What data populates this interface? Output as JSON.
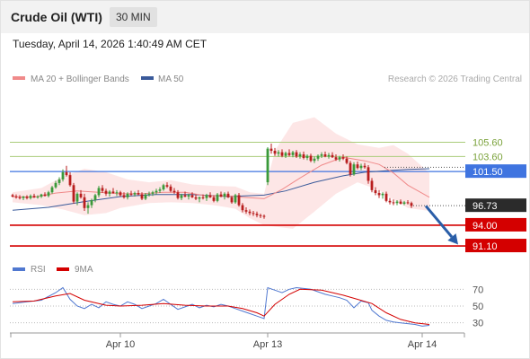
{
  "header": {
    "instrument": "Crude Oil (WTI)",
    "timeframe": "30 MIN"
  },
  "datetime": "Tuesday, April 14, 2026 1:40:49 AM CET",
  "legend": {
    "ma20_label": "MA 20 + Bollinger Bands",
    "ma50_label": "MA 50",
    "copyright": "Research © 2026 Trading Central",
    "rsi_label": "RSI",
    "rsi_ma_label": "9MA"
  },
  "colors": {
    "ma20": "#f08a8a",
    "ma50": "#3a5a9a",
    "bollinger_fill": "#fde2e2",
    "candle_up": "#3a9a3a",
    "candle_down": "#b81e1e",
    "support": "#d40000",
    "resistance": "#a9cc7a",
    "pivot": "#3f74e0",
    "last_price": "#2b2b2b",
    "forecast_arrow": "#2a5ea8",
    "rsi": "#5078d0",
    "rsi_ma": "#d40000"
  },
  "chart_data": [
    {
      "type": "line",
      "title": "",
      "price_range": [
        89.6,
        110.3
      ],
      "x_ticks": [
        {
          "label": "Apr 10",
          "bar": 30
        },
        {
          "label": "Apr 13",
          "bar": 71
        },
        {
          "label": "Apr 14",
          "bar": 114
        }
      ],
      "levels": [
        {
          "value": 105.6,
          "label": "105.60",
          "kind": "resistance"
        },
        {
          "value": 103.6,
          "label": "103.60",
          "kind": "resistance"
        },
        {
          "value": 101.5,
          "label": "101.50",
          "kind": "pivot"
        },
        {
          "value": 94.0,
          "label": "94.00",
          "kind": "support"
        },
        {
          "value": 91.1,
          "label": "91.10",
          "kind": "support"
        }
      ],
      "last_price": {
        "value": 96.73,
        "label": "96.73"
      },
      "forecast": {
        "from_bar": 115,
        "from": 96.7,
        "to_bar": 124,
        "to": 91.3
      },
      "ohlc": [
        [
          98.2,
          98.4,
          97.9,
          98.0
        ],
        [
          98.0,
          98.3,
          97.7,
          97.9
        ],
        [
          97.9,
          98.2,
          97.6,
          97.8
        ],
        [
          97.8,
          98.1,
          97.5,
          98.0
        ],
        [
          98.0,
          98.2,
          97.6,
          97.8
        ],
        [
          97.8,
          98.3,
          97.6,
          98.1
        ],
        [
          98.1,
          98.4,
          97.8,
          97.9
        ],
        [
          97.9,
          98.2,
          97.7,
          98.0
        ],
        [
          98.0,
          98.4,
          97.8,
          98.3
        ],
        [
          98.3,
          98.6,
          98.0,
          98.1
        ],
        [
          98.1,
          98.8,
          97.9,
          98.6
        ],
        [
          98.6,
          99.5,
          98.4,
          99.3
        ],
        [
          99.3,
          100.2,
          99.1,
          99.9
        ],
        [
          99.9,
          100.7,
          99.6,
          100.4
        ],
        [
          100.4,
          101.8,
          100.1,
          101.4
        ],
        [
          101.4,
          102.3,
          100.8,
          101.0
        ],
        [
          101.0,
          101.4,
          99.4,
          99.6
        ],
        [
          99.6,
          99.9,
          97.0,
          97.3
        ],
        [
          97.3,
          98.6,
          96.8,
          98.4
        ],
        [
          98.4,
          98.9,
          97.7,
          97.9
        ],
        [
          97.9,
          98.4,
          96.0,
          96.4
        ],
        [
          96.4,
          97.2,
          95.6,
          96.8
        ],
        [
          96.8,
          97.7,
          96.4,
          97.5
        ],
        [
          97.5,
          98.4,
          97.2,
          98.2
        ],
        [
          98.2,
          99.5,
          97.9,
          99.2
        ],
        [
          99.2,
          99.6,
          98.5,
          98.8
        ],
        [
          98.8,
          99.1,
          98.1,
          98.4
        ],
        [
          98.4,
          98.9,
          98.0,
          98.7
        ],
        [
          98.7,
          99.2,
          98.4,
          98.5
        ],
        [
          98.5,
          98.9,
          98.1,
          98.6
        ],
        [
          98.6,
          98.8,
          98.0,
          98.2
        ],
        [
          98.2,
          98.6,
          97.7,
          97.9
        ],
        [
          97.9,
          98.6,
          97.6,
          98.4
        ],
        [
          98.4,
          98.8,
          98.1,
          98.3
        ],
        [
          98.3,
          98.7,
          98.0,
          98.5
        ],
        [
          98.5,
          98.9,
          98.2,
          98.3
        ],
        [
          98.3,
          98.6,
          97.5,
          97.7
        ],
        [
          97.7,
          98.5,
          97.5,
          98.3
        ],
        [
          98.3,
          98.7,
          98.0,
          98.4
        ],
        [
          98.4,
          98.8,
          98.1,
          98.6
        ],
        [
          98.6,
          99.1,
          98.3,
          98.8
        ],
        [
          98.8,
          99.3,
          98.5,
          99.0
        ],
        [
          99.0,
          99.8,
          98.8,
          99.6
        ],
        [
          99.6,
          100.0,
          99.2,
          99.4
        ],
        [
          99.4,
          99.7,
          98.6,
          98.8
        ],
        [
          98.8,
          99.2,
          98.4,
          98.6
        ],
        [
          98.6,
          98.9,
          97.6,
          97.8
        ],
        [
          97.8,
          98.4,
          97.5,
          98.2
        ],
        [
          98.2,
          98.7,
          97.9,
          98.0
        ],
        [
          98.0,
          98.4,
          97.6,
          98.2
        ],
        [
          98.2,
          98.6,
          97.8,
          97.9
        ],
        [
          97.9,
          98.3,
          97.5,
          97.7
        ],
        [
          97.7,
          98.0,
          97.2,
          97.9
        ],
        [
          97.9,
          98.3,
          97.6,
          97.8
        ],
        [
          97.8,
          98.4,
          97.4,
          98.2
        ],
        [
          98.2,
          98.6,
          97.8,
          97.9
        ],
        [
          97.9,
          98.2,
          97.2,
          97.4
        ],
        [
          97.4,
          98.5,
          97.2,
          98.3
        ],
        [
          98.3,
          98.7,
          97.9,
          98.0
        ],
        [
          98.0,
          98.6,
          97.6,
          98.4
        ],
        [
          98.4,
          98.7,
          97.8,
          97.9
        ],
        [
          97.9,
          98.1,
          97.0,
          97.2
        ],
        [
          97.2,
          98.4,
          97.0,
          98.2
        ],
        [
          98.2,
          98.5,
          96.6,
          96.8
        ],
        [
          96.8,
          97.1,
          95.8,
          96.1
        ],
        [
          96.1,
          96.5,
          95.6,
          95.9
        ],
        [
          95.9,
          96.2,
          95.4,
          95.7
        ],
        [
          95.7,
          96.0,
          95.3,
          95.6
        ],
        [
          95.6,
          95.9,
          95.1,
          95.4
        ],
        [
          95.4,
          95.6,
          95.0,
          95.3
        ],
        [
          95.3,
          95.5,
          94.9,
          95.2
        ],
        [
          100.0,
          104.9,
          99.6,
          104.7
        ],
        [
          104.7,
          105.4,
          104.0,
          104.4
        ],
        [
          104.4,
          104.8,
          103.7,
          104.0
        ],
        [
          104.0,
          104.5,
          103.6,
          104.2
        ],
        [
          104.2,
          104.6,
          103.5,
          103.7
        ],
        [
          103.7,
          104.3,
          103.4,
          104.1
        ],
        [
          104.1,
          104.6,
          103.6,
          103.8
        ],
        [
          103.8,
          104.4,
          103.5,
          104.2
        ],
        [
          104.2,
          104.5,
          103.4,
          103.6
        ],
        [
          103.6,
          104.2,
          103.3,
          103.9
        ],
        [
          103.9,
          104.3,
          103.2,
          103.4
        ],
        [
          103.4,
          103.9,
          103.1,
          103.7
        ],
        [
          103.7,
          104.0,
          102.8,
          103.0
        ],
        [
          103.0,
          103.6,
          102.7,
          103.3
        ],
        [
          103.3,
          103.9,
          103.0,
          103.7
        ],
        [
          103.7,
          104.2,
          103.4,
          103.9
        ],
        [
          103.9,
          104.3,
          103.5,
          103.6
        ],
        [
          103.6,
          104.1,
          103.3,
          103.8
        ],
        [
          103.8,
          104.2,
          103.4,
          103.5
        ],
        [
          103.5,
          103.9,
          103.0,
          103.2
        ],
        [
          103.2,
          103.7,
          102.9,
          103.5
        ],
        [
          103.5,
          103.9,
          103.1,
          103.3
        ],
        [
          103.3,
          103.6,
          102.5,
          102.7
        ],
        [
          102.7,
          103.0,
          100.8,
          101.1
        ],
        [
          101.1,
          102.8,
          100.9,
          102.5
        ],
        [
          102.5,
          102.9,
          101.8,
          102.0
        ],
        [
          102.0,
          102.6,
          101.7,
          102.3
        ],
        [
          102.3,
          102.7,
          101.9,
          102.1
        ],
        [
          102.1,
          102.4,
          99.8,
          100.2
        ],
        [
          100.2,
          100.6,
          98.6,
          98.9
        ],
        [
          98.9,
          99.3,
          98.2,
          98.5
        ],
        [
          98.5,
          98.9,
          97.8,
          98.2
        ],
        [
          98.2,
          98.6,
          97.7,
          98.4
        ],
        [
          98.4,
          98.7,
          97.2,
          97.4
        ],
        [
          97.4,
          97.8,
          96.9,
          97.2
        ],
        [
          97.2,
          97.6,
          96.8,
          97.1
        ],
        [
          97.1,
          97.5,
          96.8,
          97.3
        ],
        [
          97.3,
          97.6,
          96.9,
          97.0
        ],
        [
          97.0,
          97.4,
          96.8,
          97.2
        ],
        [
          97.2,
          97.5,
          96.9,
          97.1
        ],
        [
          97.1,
          97.3,
          96.4,
          96.7
        ]
      ],
      "ma20": [
        [
          0,
          98.0
        ],
        [
          6,
          97.9
        ],
        [
          12,
          98.5
        ],
        [
          18,
          98.8
        ],
        [
          24,
          98.6
        ],
        [
          30,
          98.4
        ],
        [
          36,
          98.4
        ],
        [
          42,
          98.6
        ],
        [
          48,
          98.6
        ],
        [
          54,
          98.1
        ],
        [
          60,
          98.1
        ],
        [
          64,
          97.9
        ],
        [
          70,
          97.7
        ],
        [
          75,
          99.0
        ],
        [
          80,
          100.6
        ],
        [
          86,
          102.4
        ],
        [
          92,
          103.5
        ],
        [
          98,
          103.0
        ],
        [
          102,
          102.5
        ],
        [
          106,
          101.3
        ],
        [
          110,
          99.6
        ],
        [
          116,
          97.9
        ]
      ],
      "ma50": [
        [
          0,
          96.1
        ],
        [
          10,
          96.5
        ],
        [
          20,
          97.3
        ],
        [
          30,
          98.0
        ],
        [
          40,
          98.3
        ],
        [
          50,
          98.3
        ],
        [
          60,
          98.0
        ],
        [
          70,
          98.2
        ],
        [
          76,
          98.8
        ],
        [
          84,
          100.0
        ],
        [
          92,
          100.9
        ],
        [
          98,
          101.4
        ],
        [
          104,
          101.6
        ],
        [
          110,
          101.8
        ],
        [
          116,
          101.9
        ]
      ],
      "bollinger_upper": [
        [
          0,
          98.6
        ],
        [
          8,
          99.2
        ],
        [
          14,
          100.8
        ],
        [
          20,
          101.9
        ],
        [
          26,
          101.4
        ],
        [
          32,
          100.4
        ],
        [
          38,
          100.0
        ],
        [
          44,
          100.3
        ],
        [
          50,
          99.7
        ],
        [
          56,
          99.5
        ],
        [
          62,
          99.4
        ],
        [
          66,
          98.6
        ],
        [
          70,
          98.4
        ],
        [
          73,
          104.4
        ],
        [
          78,
          108.3
        ],
        [
          84,
          109.1
        ],
        [
          90,
          106.8
        ],
        [
          96,
          105.3
        ],
        [
          102,
          104.8
        ],
        [
          106,
          105.2
        ],
        [
          110,
          104.0
        ],
        [
          116,
          101.3
        ]
      ],
      "bollinger_lower": [
        [
          0,
          97.2
        ],
        [
          8,
          96.8
        ],
        [
          14,
          96.2
        ],
        [
          20,
          95.4
        ],
        [
          26,
          95.7
        ],
        [
          30,
          96.4
        ],
        [
          38,
          97.1
        ],
        [
          44,
          97.2
        ],
        [
          50,
          97.1
        ],
        [
          56,
          96.8
        ],
        [
          62,
          96.3
        ],
        [
          66,
          95.0
        ],
        [
          70,
          94.0
        ],
        [
          73,
          93.8
        ],
        [
          78,
          93.5
        ],
        [
          84,
          95.9
        ],
        [
          90,
          98.4
        ],
        [
          96,
          100.0
        ],
        [
          102,
          98.9
        ],
        [
          106,
          97.6
        ],
        [
          110,
          96.4
        ],
        [
          116,
          96.0
        ]
      ]
    },
    {
      "type": "line",
      "title": "",
      "y_range": [
        20,
        80
      ],
      "y_ticks": [
        30,
        50,
        70
      ],
      "rsi": [
        [
          0,
          53
        ],
        [
          4,
          55
        ],
        [
          8,
          57
        ],
        [
          12,
          66
        ],
        [
          14,
          72
        ],
        [
          16,
          58
        ],
        [
          18,
          50
        ],
        [
          20,
          47
        ],
        [
          22,
          52
        ],
        [
          24,
          48
        ],
        [
          26,
          55
        ],
        [
          28,
          52
        ],
        [
          30,
          50
        ],
        [
          32,
          55
        ],
        [
          34,
          52
        ],
        [
          36,
          47
        ],
        [
          38,
          50
        ],
        [
          40,
          53
        ],
        [
          42,
          58
        ],
        [
          44,
          52
        ],
        [
          46,
          46
        ],
        [
          48,
          49
        ],
        [
          50,
          52
        ],
        [
          52,
          48
        ],
        [
          54,
          51
        ],
        [
          56,
          49
        ],
        [
          58,
          52
        ],
        [
          60,
          50
        ],
        [
          62,
          47
        ],
        [
          64,
          44
        ],
        [
          66,
          41
        ],
        [
          68,
          38
        ],
        [
          70,
          35
        ],
        [
          71,
          72
        ],
        [
          73,
          69
        ],
        [
          75,
          66
        ],
        [
          77,
          70
        ],
        [
          79,
          72
        ],
        [
          81,
          71
        ],
        [
          83,
          70
        ],
        [
          85,
          67
        ],
        [
          87,
          64
        ],
        [
          89,
          62
        ],
        [
          91,
          60
        ],
        [
          93,
          57
        ],
        [
          95,
          48
        ],
        [
          97,
          56
        ],
        [
          99,
          54
        ],
        [
          100,
          45
        ],
        [
          102,
          38
        ],
        [
          104,
          33
        ],
        [
          106,
          31
        ],
        [
          108,
          30
        ],
        [
          110,
          29
        ],
        [
          112,
          28
        ],
        [
          114,
          26
        ],
        [
          116,
          27
        ]
      ],
      "rsi_9ma": [
        [
          0,
          55
        ],
        [
          6,
          56
        ],
        [
          12,
          62
        ],
        [
          16,
          65
        ],
        [
          20,
          57
        ],
        [
          26,
          51
        ],
        [
          30,
          50
        ],
        [
          36,
          51
        ],
        [
          42,
          53
        ],
        [
          48,
          51
        ],
        [
          54,
          50
        ],
        [
          60,
          50
        ],
        [
          64,
          47
        ],
        [
          68,
          42
        ],
        [
          70,
          38
        ],
        [
          73,
          52
        ],
        [
          77,
          64
        ],
        [
          80,
          70
        ],
        [
          86,
          69
        ],
        [
          92,
          63
        ],
        [
          96,
          58
        ],
        [
          100,
          53
        ],
        [
          104,
          42
        ],
        [
          108,
          34
        ],
        [
          112,
          30
        ],
        [
          116,
          28
        ]
      ]
    }
  ]
}
